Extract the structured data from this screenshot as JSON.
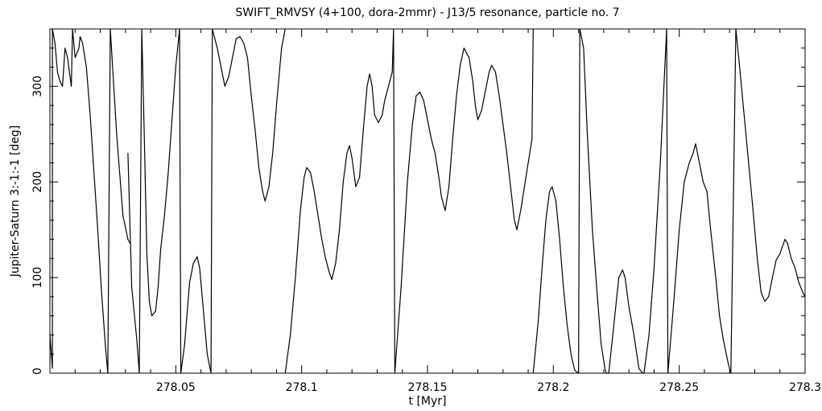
{
  "chart_data": {
    "type": "line",
    "title": "SWIFT_RMVSY (4+100, dora-2mmr) - J13/5 resonance, particle no. 7",
    "xlabel": "t [Myr]",
    "ylabel": "Jupiter-Saturn   3:-1:-1 [deg]",
    "xlim": [
      278.0,
      278.3
    ],
    "ylim": [
      0,
      360
    ],
    "xticks": [
      278.05,
      278.1,
      278.15,
      278.2,
      278.25,
      278.3
    ],
    "xtick_labels": [
      "278.05",
      "278.1",
      "278.15",
      "278.2",
      "278.25",
      "278.3"
    ],
    "yticks": [
      0,
      100,
      200,
      300
    ],
    "ytick_labels": [
      "0",
      "100",
      "200",
      "300"
    ],
    "grid": false,
    "series": [
      {
        "values": [
          [
            278.0,
            40
          ],
          [
            278.001,
            5
          ],
          [
            278.001,
            360
          ],
          [
            278.002,
            345
          ],
          [
            278.003,
            315
          ],
          [
            278.004,
            305
          ],
          [
            278.005,
            300
          ],
          [
            278.006,
            340
          ],
          [
            278.007,
            330
          ],
          [
            278.008,
            310
          ],
          [
            278.0085,
            300
          ],
          [
            278.009,
            360
          ],
          [
            278.01,
            330
          ],
          [
            278.0115,
            340
          ],
          [
            278.012,
            352
          ],
          [
            278.013,
            345
          ],
          [
            278.0145,
            320
          ],
          [
            278.016,
            270
          ],
          [
            278.0175,
            210
          ],
          [
            278.019,
            150
          ],
          [
            278.0205,
            85
          ],
          [
            278.022,
            30
          ],
          [
            278.023,
            0
          ],
          [
            278.024,
            360
          ],
          [
            278.0265,
            250
          ],
          [
            278.029,
            165
          ],
          [
            278.031,
            140
          ],
          [
            278.032,
            135
          ],
          [
            278.031,
            230
          ],
          [
            278.0325,
            90
          ],
          [
            278.0345,
            35
          ],
          [
            278.0355,
            0
          ],
          [
            278.0365,
            360
          ],
          [
            278.0375,
            245
          ],
          [
            278.0385,
            125
          ],
          [
            278.0395,
            75
          ],
          [
            278.0405,
            60
          ],
          [
            278.042,
            65
          ],
          [
            278.043,
            90
          ],
          [
            278.044,
            130
          ],
          [
            278.0455,
            165
          ],
          [
            278.047,
            210
          ],
          [
            278.0485,
            265
          ],
          [
            278.05,
            320
          ],
          [
            278.0515,
            360
          ],
          [
            278.052,
            0
          ],
          [
            278.0535,
            30
          ],
          [
            278.0555,
            95
          ],
          [
            278.057,
            115
          ],
          [
            278.0585,
            122
          ],
          [
            278.0595,
            110
          ],
          [
            278.061,
            65
          ],
          [
            278.0625,
            20
          ],
          [
            278.064,
            0
          ],
          [
            278.0645,
            360
          ],
          [
            278.0665,
            340
          ],
          [
            278.068,
            320
          ],
          [
            278.0695,
            300
          ],
          [
            278.071,
            310
          ],
          [
            278.0725,
            330
          ],
          [
            278.074,
            350
          ],
          [
            278.0755,
            352
          ],
          [
            278.077,
            345
          ],
          [
            278.0785,
            330
          ],
          [
            278.08,
            290
          ],
          [
            278.0815,
            255
          ],
          [
            278.083,
            215
          ],
          [
            278.0845,
            190
          ],
          [
            278.0855,
            180
          ],
          [
            278.087,
            195
          ],
          [
            278.0885,
            230
          ],
          [
            278.09,
            280
          ],
          [
            278.092,
            340
          ],
          [
            278.0935,
            360
          ]
        ]
      },
      {
        "values": [
          [
            278.0935,
            0
          ],
          [
            278.0955,
            40
          ],
          [
            278.0975,
            100
          ],
          [
            278.0995,
            170
          ],
          [
            278.101,
            205
          ],
          [
            278.102,
            215
          ],
          [
            278.1035,
            210
          ],
          [
            278.105,
            190
          ],
          [
            278.1065,
            165
          ],
          [
            278.108,
            140
          ],
          [
            278.1095,
            120
          ],
          [
            278.111,
            105
          ],
          [
            278.112,
            98
          ],
          [
            278.1135,
            115
          ],
          [
            278.115,
            150
          ],
          [
            278.1165,
            200
          ],
          [
            278.118,
            230
          ],
          [
            278.119,
            238
          ],
          [
            278.12,
            225
          ],
          [
            278.1215,
            195
          ],
          [
            278.123,
            205
          ],
          [
            278.1245,
            255
          ],
          [
            278.126,
            300
          ],
          [
            278.127,
            313
          ],
          [
            278.128,
            300
          ],
          [
            278.129,
            270
          ],
          [
            278.1305,
            262
          ],
          [
            278.132,
            270
          ],
          [
            278.133,
            285
          ],
          [
            278.1345,
            300
          ],
          [
            278.136,
            315
          ],
          [
            278.1365,
            360
          ],
          [
            278.137,
            0
          ],
          [
            278.1395,
            90
          ],
          [
            278.142,
            200
          ],
          [
            278.144,
            260
          ],
          [
            278.1455,
            290
          ],
          [
            278.147,
            294
          ],
          [
            278.1485,
            285
          ],
          [
            278.15,
            265
          ],
          [
            278.1515,
            245
          ],
          [
            278.153,
            230
          ],
          [
            278.1545,
            205
          ],
          [
            278.1555,
            185
          ],
          [
            278.157,
            170
          ],
          [
            278.1585,
            195
          ],
          [
            278.16,
            245
          ],
          [
            278.1615,
            290
          ],
          [
            278.163,
            322
          ],
          [
            278.1645,
            340
          ],
          [
            278.1665,
            330
          ],
          [
            278.168,
            305
          ],
          [
            278.169,
            280
          ],
          [
            278.17,
            265
          ],
          [
            278.1715,
            275
          ],
          [
            278.173,
            295
          ],
          [
            278.1745,
            315
          ],
          [
            278.1755,
            322
          ],
          [
            278.177,
            315
          ],
          [
            278.1785,
            290
          ],
          [
            278.18,
            260
          ],
          [
            278.1815,
            230
          ],
          [
            278.183,
            195
          ],
          [
            278.1845,
            160
          ],
          [
            278.1855,
            150
          ],
          [
            278.187,
            170
          ],
          [
            278.1885,
            195
          ],
          [
            278.19,
            220
          ],
          [
            278.1915,
            245
          ],
          [
            278.192,
            360
          ]
        ]
      },
      {
        "values": [
          [
            278.192,
            0
          ],
          [
            278.194,
            55
          ],
          [
            278.1955,
            110
          ],
          [
            278.197,
            160
          ],
          [
            278.1985,
            190
          ],
          [
            278.1995,
            195
          ],
          [
            278.201,
            180
          ],
          [
            278.2025,
            140
          ],
          [
            278.204,
            90
          ],
          [
            278.2055,
            50
          ],
          [
            278.207,
            20
          ],
          [
            278.2085,
            3
          ],
          [
            278.21,
            0
          ],
          [
            278.2105,
            360
          ],
          [
            278.212,
            340
          ],
          [
            278.2135,
            250
          ],
          [
            278.2155,
            150
          ],
          [
            278.2175,
            80
          ],
          [
            278.219,
            30
          ],
          [
            278.2205,
            5
          ],
          [
            278.221,
            0
          ],
          [
            278.222,
            0
          ],
          [
            278.224,
            50
          ],
          [
            278.226,
            100
          ],
          [
            278.2275,
            108
          ],
          [
            278.2285,
            100
          ],
          [
            278.23,
            70
          ],
          [
            278.232,
            40
          ],
          [
            278.234,
            5
          ],
          [
            278.2355,
            0
          ],
          [
            278.236,
            0
          ],
          [
            278.238,
            40
          ],
          [
            278.24,
            110
          ],
          [
            278.2425,
            220
          ],
          [
            278.245,
            360
          ],
          [
            278.2455,
            0
          ],
          [
            278.248,
            80
          ],
          [
            278.25,
            150
          ],
          [
            278.252,
            200
          ],
          [
            278.254,
            220
          ],
          [
            278.2555,
            230
          ],
          [
            278.2565,
            240
          ],
          [
            278.258,
            220
          ],
          [
            278.2595,
            200
          ],
          [
            278.261,
            190
          ],
          [
            278.2625,
            150
          ],
          [
            278.2645,
            100
          ],
          [
            278.266,
            60
          ],
          [
            278.2675,
            35
          ],
          [
            278.2695,
            10
          ],
          [
            278.2705,
            0
          ],
          [
            278.2725,
            360
          ],
          [
            278.274,
            320
          ],
          [
            278.2765,
            250
          ],
          [
            278.279,
            180
          ],
          [
            278.281,
            120
          ],
          [
            278.2825,
            85
          ],
          [
            278.284,
            75
          ],
          [
            278.2855,
            80
          ],
          [
            278.287,
            100
          ],
          [
            278.2885,
            118
          ],
          [
            278.29,
            125
          ],
          [
            278.292,
            140
          ],
          [
            278.293,
            136
          ],
          [
            278.2945,
            120
          ],
          [
            278.296,
            110
          ],
          [
            278.2975,
            95
          ],
          [
            278.299,
            85
          ],
          [
            278.3,
            80
          ]
        ]
      }
    ]
  }
}
